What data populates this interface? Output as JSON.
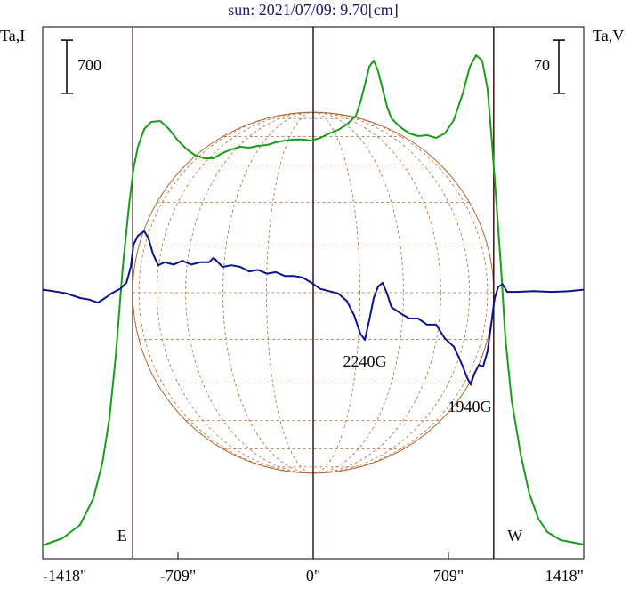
{
  "chart_data": {
    "type": "line",
    "title": "sun: 2021/07/09: 9.70[cm]",
    "y_label": "Ta,I",
    "y2_label": "Ta,V",
    "xlim": [
      -1418,
      1418
    ],
    "xticks": [
      {
        "value": -1418,
        "label": "-1418\""
      },
      {
        "value": -709,
        "label": "-709\""
      },
      {
        "value": 0,
        "label": "0\""
      },
      {
        "value": 709,
        "label": "709\""
      },
      {
        "value": 1418,
        "label": "1418\""
      }
    ],
    "ylim": [
      0,
      7000
    ],
    "y2lim": [
      -350,
      350
    ],
    "y_scale_bar": 700,
    "y2_scale_bar": 70,
    "limb_x": [
      -946,
      946
    ],
    "limb_labels": [
      "E",
      "W"
    ],
    "annotations": [
      "2240G",
      "1940G"
    ],
    "series": [
      {
        "color": "#1a9e1a",
        "x": [
          -1418,
          -1315,
          -1222,
          -1152,
          -1105,
          -1068,
          -1035,
          -998,
          -965,
          -942,
          -919,
          -886,
          -849,
          -802,
          -756,
          -709,
          -662,
          -616,
          -569,
          -522,
          -476,
          -429,
          -382,
          -336,
          -289,
          -243,
          -196,
          -149,
          -103,
          -56,
          -9,
          37,
          84,
          131,
          177,
          224,
          247,
          271,
          294,
          317,
          340,
          364,
          387,
          410,
          457,
          504,
          550,
          597,
          644,
          690,
          737,
          784,
          821,
          854,
          886,
          914,
          937,
          961,
          984,
          1007,
          1040,
          1087,
          1133,
          1180,
          1227,
          1297,
          1418
        ],
        "values": [
          176,
          269,
          445,
          796,
          1264,
          1850,
          2669,
          3840,
          4659,
          5127,
          5420,
          5654,
          5748,
          5759,
          5654,
          5502,
          5385,
          5303,
          5268,
          5268,
          5338,
          5385,
          5420,
          5408,
          5432,
          5443,
          5478,
          5502,
          5514,
          5514,
          5502,
          5537,
          5595,
          5642,
          5713,
          5830,
          6005,
          6239,
          6473,
          6555,
          6415,
          6181,
          5947,
          5794,
          5677,
          5595,
          5560,
          5572,
          5537,
          5595,
          5771,
          6122,
          6473,
          6626,
          6555,
          6181,
          5478,
          4659,
          3840,
          2903,
          2084,
          1381,
          855,
          527,
          351,
          246,
          187
        ]
      },
      {
        "color": "#0a148c",
        "axis": "y2",
        "x": [
          -1418,
          -1362,
          -1292,
          -1222,
          -1175,
          -1129,
          -1091,
          -1059,
          -1012,
          -979,
          -956,
          -942,
          -919,
          -886,
          -863,
          -840,
          -812,
          -779,
          -732,
          -686,
          -639,
          -592,
          -546,
          -522,
          -476,
          -429,
          -382,
          -336,
          -289,
          -243,
          -196,
          -149,
          -103,
          -56,
          -9,
          37,
          84,
          131,
          177,
          215,
          247,
          271,
          294,
          317,
          340,
          364,
          387,
          410,
          457,
          504,
          550,
          597,
          644,
          690,
          737,
          760,
          784,
          807,
          826,
          844,
          868,
          891,
          914,
          933,
          951,
          970,
          993,
          1017,
          1063,
          1157,
          1250,
          1343,
          1418
        ],
        "values": [
          4,
          2,
          -1,
          -7,
          -9,
          -13,
          -7,
          -1,
          5,
          13,
          34,
          63,
          75,
          81,
          71,
          51,
          36,
          40,
          37,
          42,
          37,
          40,
          40,
          46,
          34,
          36,
          34,
          28,
          30,
          25,
          27,
          22,
          22,
          20,
          13,
          5,
          2,
          -1,
          -11,
          -30,
          -54,
          -62,
          -36,
          -7,
          8,
          13,
          -1,
          -19,
          -27,
          -34,
          -34,
          -42,
          -42,
          -60,
          -71,
          -83,
          -97,
          -112,
          -121,
          -107,
          -95,
          -97,
          -77,
          -42,
          -7,
          8,
          11,
          1,
          1,
          2,
          1,
          2,
          4
        ]
      }
    ]
  }
}
